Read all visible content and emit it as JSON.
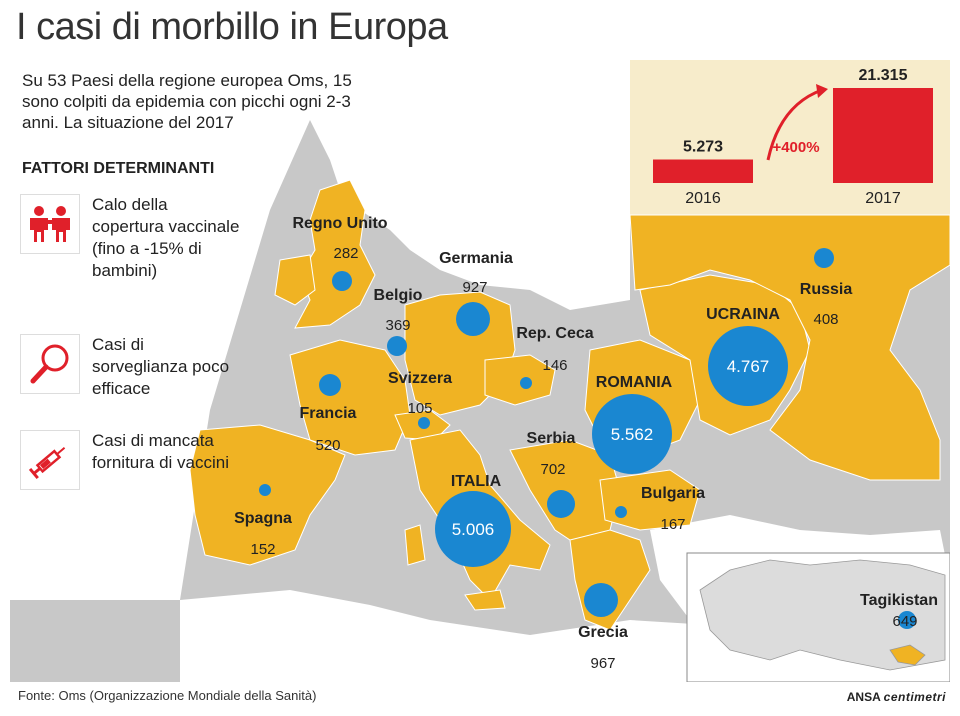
{
  "title": "I casi di morbillo in Europa",
  "intro": "Su 53 Paesi della regione europea Oms, 15 sono colpiti da epidemia con picchi ogni 2-3 anni. La situazione del 2017",
  "factors": {
    "heading": "FATTORI DETERMINANTI",
    "items": [
      {
        "icon": "children-icon",
        "text": "Calo della copertura vaccinale (fino a -15% di bambini)"
      },
      {
        "icon": "magnifier-icon",
        "text": "Casi di sorveglianza poco efficace"
      },
      {
        "icon": "syringe-icon",
        "text": "Casi di mancata fornitura di vaccini"
      }
    ]
  },
  "chart_data": {
    "type": "bar",
    "categories": [
      "2016",
      "2017"
    ],
    "values": [
      5273,
      21315
    ],
    "value_labels": [
      "5.273",
      "21.315"
    ],
    "annotation": "+400%",
    "color": "#e0202a"
  },
  "countries": [
    {
      "name": "Regno Unito",
      "value": "282"
    },
    {
      "name": "Belgio",
      "value": "369"
    },
    {
      "name": "Germania",
      "value": "927"
    },
    {
      "name": "Rep. Ceca",
      "value": "146"
    },
    {
      "name": "Francia",
      "value": "520"
    },
    {
      "name": "Svizzera",
      "value": "105"
    },
    {
      "name": "Spagna",
      "value": "152"
    },
    {
      "name": "ITALIA",
      "value": "5.006"
    },
    {
      "name": "Serbia",
      "value": "702"
    },
    {
      "name": "ROMANIA",
      "value": "5.562"
    },
    {
      "name": "UCRAINA",
      "value": "4.767"
    },
    {
      "name": "Russia",
      "value": "408"
    },
    {
      "name": "Bulgaria",
      "value": "167"
    },
    {
      "name": "Grecia",
      "value": "967"
    },
    {
      "name": "Tagikistan",
      "value": "649"
    }
  ],
  "colors": {
    "land": "#f0b323",
    "sea": "#c8c8c8",
    "bubble": "#1a87d1",
    "bar": "#e0202a",
    "inset_bg": "#f7eccb"
  },
  "source": "Fonte: Oms (Organizzazione Mondiale della Sanità)",
  "brand": {
    "ansa": "ANSA",
    "centimetri": "centimetri"
  }
}
